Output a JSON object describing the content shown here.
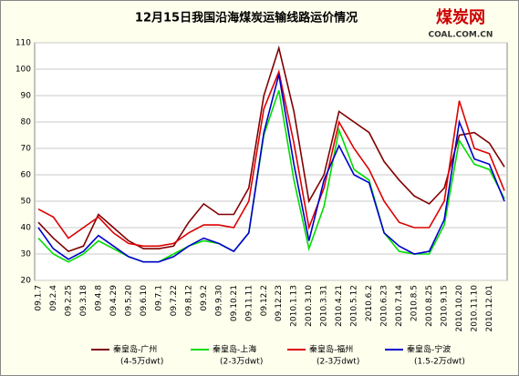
{
  "chart_data": {
    "type": "line",
    "title": "12月15日我国沿海煤炭运输线路运价情况",
    "logo": {
      "name": "煤炭网",
      "url": "COAL.COM.CN"
    },
    "categories": [
      "09.1.7",
      "09.2.4",
      "09.2.25",
      "09.3.18",
      "09.4.8",
      "09.4.29",
      "09.5.20",
      "09.6.10",
      "09.7.1",
      "09.7.22",
      "09.8.12",
      "09.9.2",
      "09.9.30",
      "09.10.21",
      "09.11.11",
      "09.12.2",
      "09.12.23",
      "2010.1.13",
      "2010.3.10",
      "2010.3.31",
      "2010.4.21",
      "2010.5.12",
      "2010.6.2",
      "2010.6.23",
      "2010.7.14",
      "2010.8.5",
      "2010.8.25",
      "2010.9.15",
      "2010.10.20",
      "2010.11.10",
      "2010.12.01",
      null
    ],
    "series": [
      {
        "name": "秦皇岛-广州",
        "note": "(4-5万dwt)",
        "color": "#800000",
        "values": [
          42,
          36,
          31,
          33,
          45,
          40,
          35,
          32,
          32,
          33,
          42,
          49,
          45,
          45,
          55,
          90,
          108,
          84,
          50,
          60,
          84,
          80,
          76,
          65,
          58,
          52,
          49,
          55,
          75,
          76,
          72,
          63
        ]
      },
      {
        "name": "秦皇岛-上海",
        "note": "(2-3万dwt)",
        "color": "#00dd00",
        "values": [
          36,
          30,
          27,
          30,
          35,
          32,
          29,
          27,
          27,
          30,
          33,
          35,
          34,
          31,
          38,
          75,
          92,
          58,
          32,
          48,
          77,
          62,
          58,
          38,
          31,
          30,
          30,
          41,
          73,
          64,
          62,
          51
        ]
      },
      {
        "name": "秦皇岛-福州",
        "note": "(2-3万dwt)",
        "color": "#dd0000",
        "values": [
          47,
          44,
          36,
          40,
          44,
          38,
          34,
          33,
          33,
          34,
          38,
          41,
          41,
          40,
          50,
          85,
          99,
          72,
          40,
          55,
          80,
          70,
          62,
          50,
          42,
          40,
          40,
          50,
          88,
          70,
          68,
          54
        ]
      },
      {
        "name": "秦皇岛-宁波",
        "note": "(1.5-2万dwt)",
        "color": "#0000cc",
        "values": [
          40,
          32,
          28,
          31,
          37,
          33,
          29,
          27,
          27,
          29,
          33,
          36,
          34,
          31,
          38,
          76,
          98,
          64,
          35,
          58,
          71,
          60,
          57,
          38,
          33,
          30,
          31,
          43,
          80,
          66,
          64,
          50
        ]
      }
    ],
    "ylim": [
      20,
      110
    ],
    "yticks": [
      20,
      30,
      40,
      50,
      60,
      70,
      80,
      90,
      100,
      110
    ],
    "grid": true
  }
}
